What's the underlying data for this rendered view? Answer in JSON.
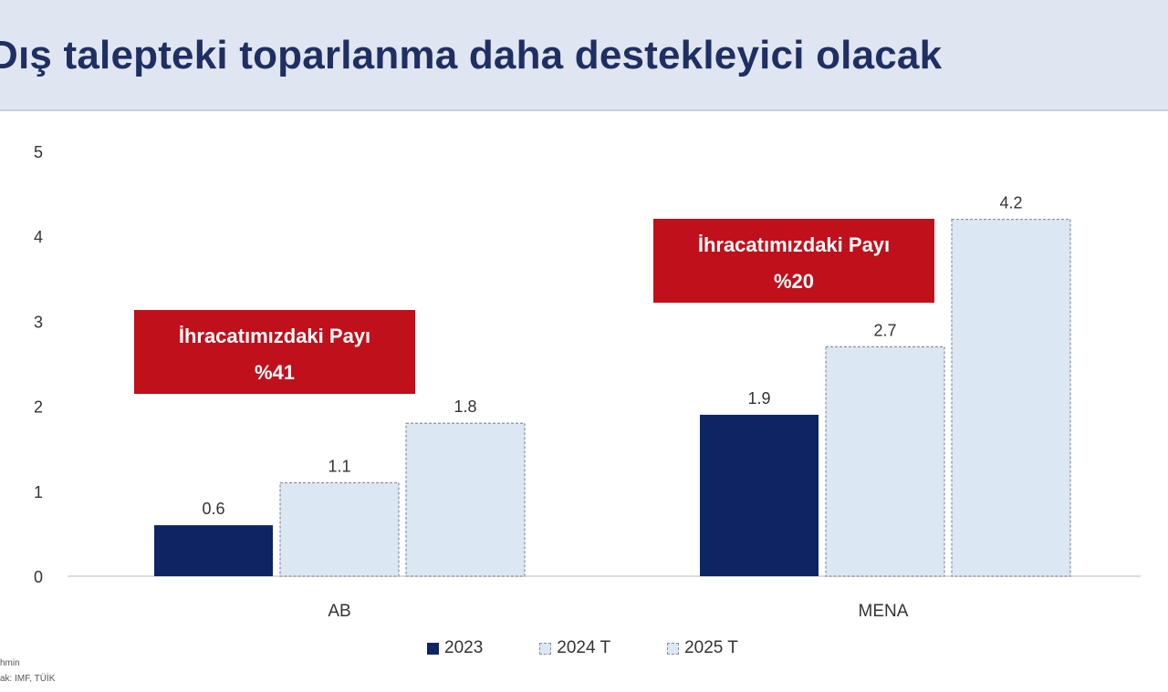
{
  "header": {
    "title": "Dış talepteki toparlanma daha destekleyici olacak"
  },
  "footnotes": {
    "line1": "hmin",
    "line2": "ak: IMF, TÜİK"
  },
  "colors": {
    "dark_bar": "#0e2463",
    "light_bar": "#dce7f4",
    "light_bar_border": "#8a8f99",
    "callout_bg": "#c0101b",
    "callout_text": "#ffffff",
    "header_bg": "#dfe6f1",
    "title_color": "#1f2f63"
  },
  "callouts": [
    {
      "line1": "İhracatımızdaki Payı",
      "line2": "%41"
    },
    {
      "line1": "İhracatımızdaki Payı",
      "line2": "%20"
    }
  ],
  "chart_data": {
    "type": "bar",
    "title": "",
    "xlabel": "",
    "ylabel": "",
    "categories": [
      "AB",
      "MENA"
    ],
    "series": [
      {
        "name": "2023",
        "values": [
          0.6,
          1.9
        ]
      },
      {
        "name": "2024 T",
        "values": [
          1.1,
          2.7
        ]
      },
      {
        "name": "2025 T",
        "values": [
          1.8,
          4.2
        ]
      }
    ],
    "ylim": [
      0,
      5
    ],
    "yticks": [
      "0",
      "1",
      "2",
      "3",
      "4",
      "5"
    ],
    "data_labels": [
      [
        "0.6",
        "1.1",
        "1.8"
      ],
      [
        "1.9",
        "2.7",
        "4.2"
      ]
    ],
    "grid": false,
    "legend_position": "bottom"
  }
}
